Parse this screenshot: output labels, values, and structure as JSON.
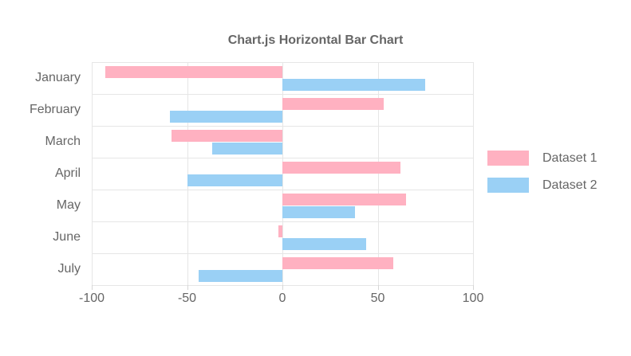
{
  "chart_data": {
    "type": "bar",
    "orientation": "horizontal",
    "title": "Chart.js Horizontal Bar Chart",
    "categories": [
      "January",
      "February",
      "March",
      "April",
      "May",
      "June",
      "July"
    ],
    "series": [
      {
        "name": "Dataset 1",
        "color": "#ffb1c1",
        "values": [
          -93,
          53,
          -58,
          62,
          65,
          -2,
          58
        ]
      },
      {
        "name": "Dataset 2",
        "color": "#9ad0f5",
        "values": [
          75,
          -59,
          -37,
          -50,
          38,
          44,
          -44
        ]
      }
    ],
    "xlabel": "",
    "ylabel": "",
    "xlim": [
      -100,
      100
    ],
    "xticks": [
      -100,
      -50,
      0,
      50,
      100
    ],
    "grid": true,
    "legend_position": "right",
    "text_color": "#666666",
    "grid_color": "#e6e6e6",
    "background_color": "#ffffff"
  }
}
